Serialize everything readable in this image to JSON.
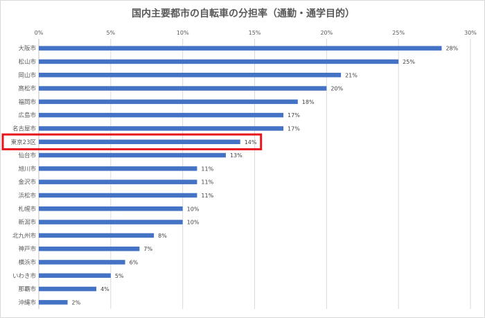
{
  "chart_data": {
    "type": "bar",
    "orientation": "horizontal",
    "title": "国内主要都市の自転車の分担率（通勤・通学目的）",
    "xlabel": "",
    "ylabel": "",
    "xlim": [
      0,
      30
    ],
    "x_ticks": [
      "0%",
      "5%",
      "10%",
      "15%",
      "20%",
      "25%",
      "30%"
    ],
    "x_tick_values": [
      0,
      5,
      10,
      15,
      20,
      25,
      30
    ],
    "grid": true,
    "legend": "none",
    "bar_color": "#4472c4",
    "highlight_color": "#e8141c",
    "highlight_category": "東京23区",
    "categories": [
      "大阪市",
      "松山市",
      "岡山市",
      "高松市",
      "福岡市",
      "広島市",
      "名古屋市",
      "東京23区",
      "仙台市",
      "旭川市",
      "金沢市",
      "浜松市",
      "札幌市",
      "新潟市",
      "北九州市",
      "神戸市",
      "横浜市",
      "いわき市",
      "那覇市",
      "沖縄市"
    ],
    "values": [
      28,
      25,
      21,
      20,
      18,
      17,
      17,
      14,
      13,
      11,
      11,
      11,
      10,
      10,
      8,
      7,
      6,
      5,
      4,
      2
    ],
    "data_labels": [
      "28%",
      "25%",
      "21%",
      "20%",
      "18%",
      "17%",
      "17%",
      "14%",
      "13%",
      "11%",
      "11%",
      "11%",
      "10%",
      "10%",
      "8%",
      "7%",
      "6%",
      "5%",
      "4%",
      "2%"
    ]
  }
}
